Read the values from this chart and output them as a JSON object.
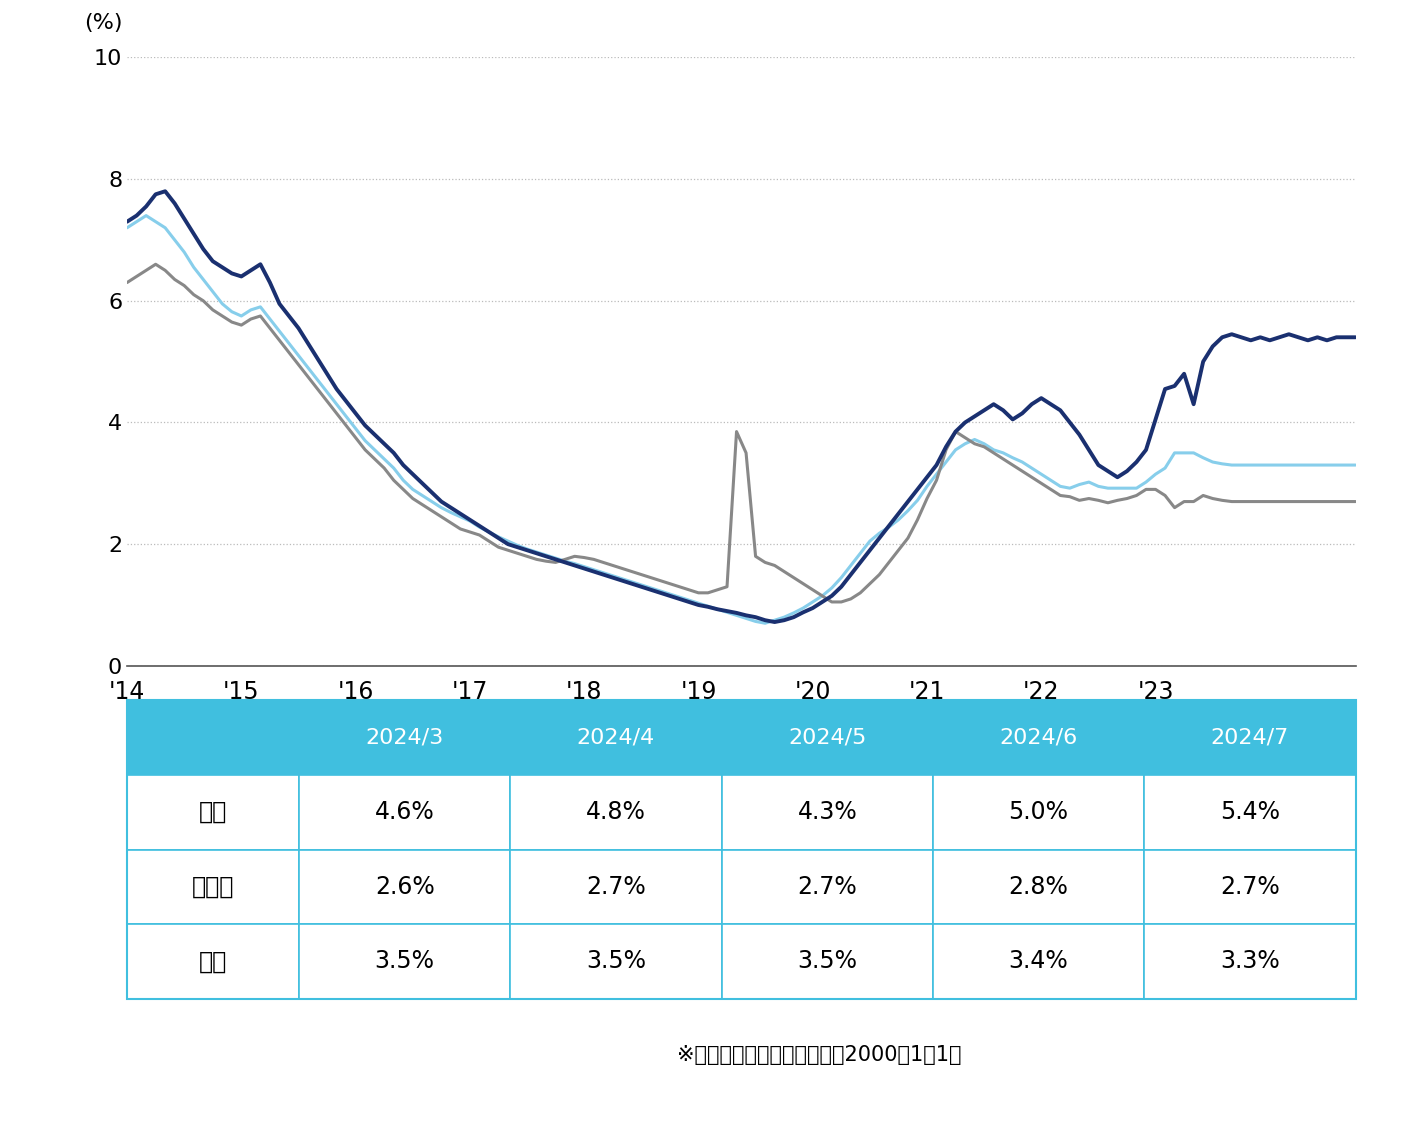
{
  "ylabel": "(%)",
  "ylim": [
    0,
    10
  ],
  "yticks": [
    0,
    2,
    4,
    6,
    8,
    10
  ],
  "xtick_labels": [
    "'14",
    "'15",
    "'16",
    "'17",
    "'18",
    "'19",
    "'20",
    "'21",
    "'22",
    "'23"
  ],
  "colors": {
    "kita": "#1a3070",
    "chuo": "#888888",
    "nishi": "#87ceeb"
  },
  "legend_labels": [
    "北区",
    "中央区",
    "西区"
  ],
  "table_header_color": "#40bfdf",
  "table_header_text_color": "#ffffff",
  "table_border_color": "#40bfdf",
  "table_row_labels": [
    "北区",
    "中央区",
    "西区"
  ],
  "table_col_labels": [
    "2024/3",
    "2024/4",
    "2024/5",
    "2024/6",
    "2024/7"
  ],
  "table_data": [
    [
      "4.6%",
      "4.8%",
      "4.3%",
      "5.0%",
      "5.4%"
    ],
    [
      "2.6%",
      "2.7%",
      "2.7%",
      "2.8%",
      "2.7%"
    ],
    [
      "3.5%",
      "3.5%",
      "3.5%",
      "3.4%",
      "3.3%"
    ]
  ],
  "note_text": "※統　計　開　始　日　：　2000年1月1日",
  "kita_y": [
    7.3,
    7.4,
    7.55,
    7.75,
    7.8,
    7.6,
    7.35,
    7.1,
    6.85,
    6.65,
    6.55,
    6.45,
    6.4,
    6.5,
    6.6,
    6.3,
    5.95,
    5.75,
    5.55,
    5.3,
    5.05,
    4.8,
    4.55,
    4.35,
    4.15,
    3.95,
    3.8,
    3.65,
    3.5,
    3.3,
    3.15,
    3.0,
    2.85,
    2.7,
    2.6,
    2.5,
    2.4,
    2.3,
    2.2,
    2.1,
    2.0,
    1.95,
    1.9,
    1.85,
    1.8,
    1.75,
    1.7,
    1.65,
    1.6,
    1.55,
    1.5,
    1.45,
    1.4,
    1.35,
    1.3,
    1.25,
    1.2,
    1.15,
    1.1,
    1.05,
    1.0,
    0.97,
    0.93,
    0.9,
    0.87,
    0.83,
    0.8,
    0.75,
    0.72,
    0.75,
    0.8,
    0.88,
    0.95,
    1.05,
    1.15,
    1.3,
    1.5,
    1.7,
    1.9,
    2.1,
    2.3,
    2.5,
    2.7,
    2.9,
    3.1,
    3.3,
    3.6,
    3.85,
    4.0,
    4.1,
    4.2,
    4.3,
    4.2,
    4.05,
    4.15,
    4.3,
    4.4,
    4.3,
    4.2,
    4.0,
    3.8,
    3.55,
    3.3,
    3.2,
    3.1,
    3.2,
    3.35,
    3.55,
    4.05,
    4.55,
    4.6,
    4.8,
    4.3,
    5.0,
    5.25,
    5.4,
    5.45,
    5.4,
    5.35,
    5.4,
    5.35,
    5.4,
    5.45,
    5.4,
    5.35,
    5.4,
    5.35,
    5.4,
    5.4,
    5.4
  ],
  "chuo_y": [
    6.3,
    6.4,
    6.5,
    6.6,
    6.5,
    6.35,
    6.25,
    6.1,
    6.0,
    5.85,
    5.75,
    5.65,
    5.6,
    5.7,
    5.75,
    5.55,
    5.35,
    5.15,
    4.95,
    4.75,
    4.55,
    4.35,
    4.15,
    3.95,
    3.75,
    3.55,
    3.4,
    3.25,
    3.05,
    2.9,
    2.75,
    2.65,
    2.55,
    2.45,
    2.35,
    2.25,
    2.2,
    2.15,
    2.05,
    1.95,
    1.9,
    1.85,
    1.8,
    1.75,
    1.72,
    1.7,
    1.75,
    1.8,
    1.78,
    1.75,
    1.7,
    1.65,
    1.6,
    1.55,
    1.5,
    1.45,
    1.4,
    1.35,
    1.3,
    1.25,
    1.2,
    1.2,
    1.25,
    1.3,
    3.85,
    3.5,
    1.8,
    1.7,
    1.65,
    1.55,
    1.45,
    1.35,
    1.25,
    1.15,
    1.05,
    1.05,
    1.1,
    1.2,
    1.35,
    1.5,
    1.7,
    1.9,
    2.1,
    2.4,
    2.75,
    3.05,
    3.55,
    3.85,
    3.75,
    3.65,
    3.6,
    3.5,
    3.4,
    3.3,
    3.2,
    3.1,
    3.0,
    2.9,
    2.8,
    2.78,
    2.72,
    2.75,
    2.72,
    2.68,
    2.72,
    2.75,
    2.8,
    2.9,
    2.9,
    2.8,
    2.6,
    2.7,
    2.7,
    2.8,
    2.75,
    2.72,
    2.7,
    2.7,
    2.7,
    2.7,
    2.7,
    2.7,
    2.7,
    2.7,
    2.7,
    2.7,
    2.7,
    2.7,
    2.7,
    2.7
  ],
  "nishi_y": [
    7.2,
    7.3,
    7.4,
    7.3,
    7.2,
    7.0,
    6.8,
    6.55,
    6.35,
    6.15,
    5.95,
    5.82,
    5.75,
    5.85,
    5.9,
    5.7,
    5.5,
    5.3,
    5.1,
    4.9,
    4.7,
    4.5,
    4.3,
    4.1,
    3.9,
    3.7,
    3.55,
    3.4,
    3.25,
    3.05,
    2.9,
    2.8,
    2.7,
    2.6,
    2.52,
    2.45,
    2.38,
    2.28,
    2.2,
    2.12,
    2.05,
    1.98,
    1.92,
    1.87,
    1.82,
    1.77,
    1.72,
    1.68,
    1.63,
    1.58,
    1.53,
    1.48,
    1.43,
    1.38,
    1.33,
    1.28,
    1.23,
    1.18,
    1.13,
    1.08,
    1.03,
    0.98,
    0.93,
    0.88,
    0.83,
    0.78,
    0.73,
    0.7,
    0.75,
    0.8,
    0.87,
    0.95,
    1.05,
    1.15,
    1.28,
    1.45,
    1.65,
    1.85,
    2.05,
    2.18,
    2.28,
    2.4,
    2.55,
    2.72,
    2.95,
    3.15,
    3.35,
    3.55,
    3.65,
    3.72,
    3.65,
    3.55,
    3.5,
    3.42,
    3.35,
    3.25,
    3.15,
    3.05,
    2.95,
    2.92,
    2.98,
    3.02,
    2.95,
    2.92,
    2.92,
    2.92,
    2.92,
    3.02,
    3.15,
    3.25,
    3.5,
    3.5,
    3.5,
    3.42,
    3.35,
    3.32,
    3.3,
    3.3,
    3.3,
    3.3,
    3.3,
    3.3,
    3.3,
    3.3,
    3.3,
    3.3,
    3.3,
    3.3,
    3.3,
    3.3
  ]
}
